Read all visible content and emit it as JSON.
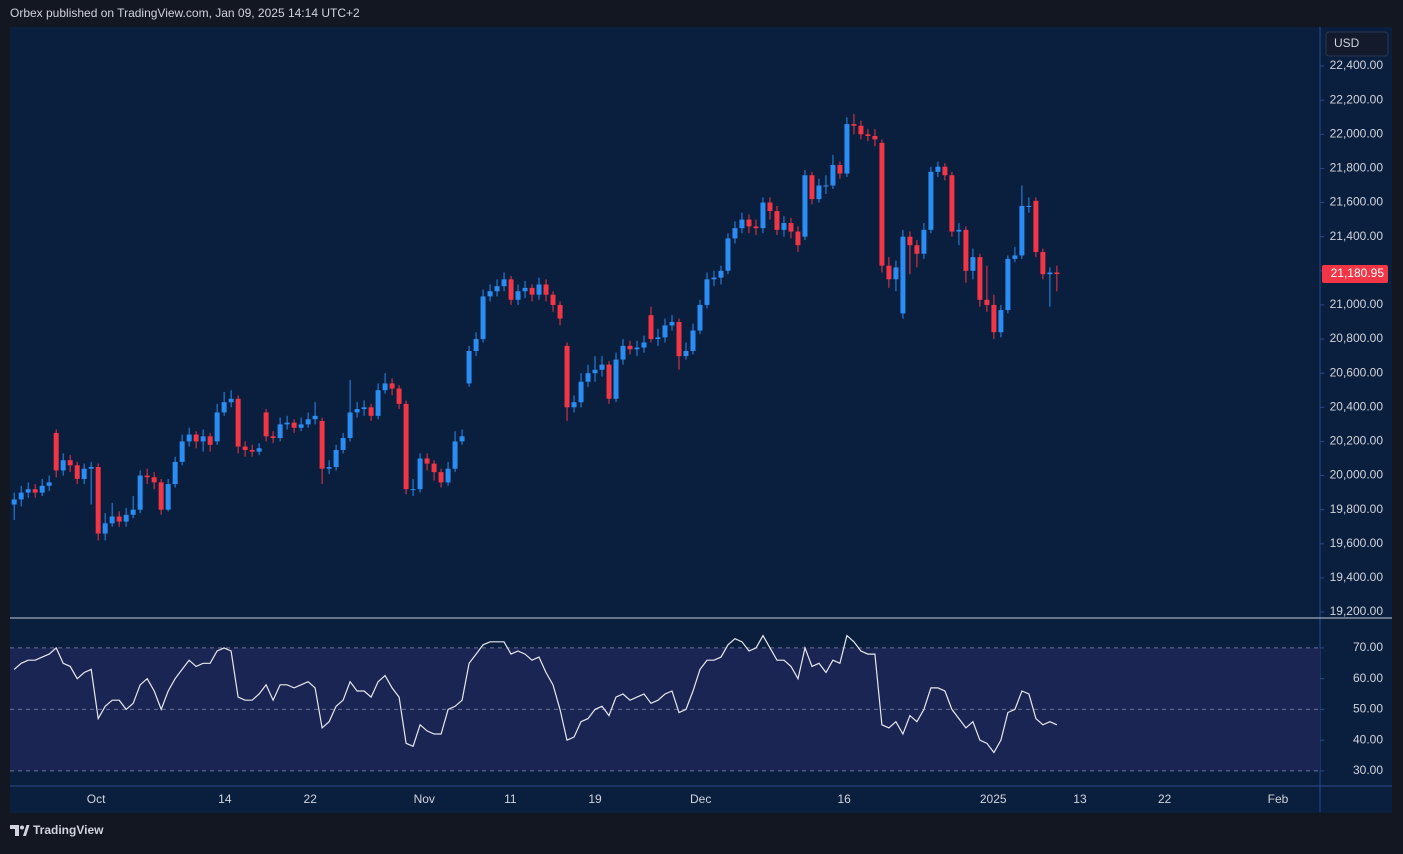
{
  "header": {
    "text": "Orbex published on TradingView.com, Jan 09, 2025 14:14 UTC+2",
    "currency": "USD"
  },
  "footer": {
    "logo_text": "TradingView"
  },
  "chart_data": [
    {
      "type": "candlestick",
      "up_color": "#2b8cf2",
      "down_color": "#f23645",
      "grid": false,
      "xlim": [
        -0.6,
        186.6
      ],
      "xticks": [
        {
          "value": 11.7,
          "label": "Oct"
        },
        {
          "value": 30.1,
          "label": "14"
        },
        {
          "value": 42.3,
          "label": "22"
        },
        {
          "value": 58.6,
          "label": "Nov"
        },
        {
          "value": 70.9,
          "label": "11"
        },
        {
          "value": 83.0,
          "label": "19"
        },
        {
          "value": 98.1,
          "label": "Dec"
        },
        {
          "value": 118.6,
          "label": "16"
        },
        {
          "value": 139.9,
          "label": "2025"
        },
        {
          "value": 152.3,
          "label": "13"
        },
        {
          "value": 164.4,
          "label": "22"
        },
        {
          "value": 180.6,
          "label": "Feb"
        }
      ],
      "ylim": [
        19171,
        22623
      ],
      "yticks": [
        {
          "value": 19200,
          "label": "19,200.00"
        },
        {
          "value": 19400,
          "label": "19,400.00"
        },
        {
          "value": 19600,
          "label": "19,600.00"
        },
        {
          "value": 19800,
          "label": "19,800.00"
        },
        {
          "value": 20000,
          "label": "20,000.00"
        },
        {
          "value": 20200,
          "label": "20,200.00"
        },
        {
          "value": 20400,
          "label": "20,400.00"
        },
        {
          "value": 20600,
          "label": "20,600.00"
        },
        {
          "value": 20800,
          "label": "20,800.00"
        },
        {
          "value": 21000,
          "label": "21,000.00"
        },
        {
          "value": 21200,
          "label": "21,200.00"
        },
        {
          "value": 21400,
          "label": "21,400.00"
        },
        {
          "value": 21600,
          "label": "21,600.00"
        },
        {
          "value": 21800,
          "label": "21,800.00"
        },
        {
          "value": 22000,
          "label": "22,000.00"
        },
        {
          "value": 22200,
          "label": "22,200.00"
        },
        {
          "value": 22400,
          "label": "22,400.00"
        }
      ],
      "last_price": {
        "value": 21180.95,
        "label": "21,180.95"
      },
      "open": [
        19830,
        19860,
        19900,
        19920,
        19900,
        19940,
        20250,
        20030,
        20090,
        20060,
        19980,
        20040,
        20050,
        19660,
        19720,
        19760,
        19730,
        19770,
        19800,
        20000,
        19990,
        19960,
        19800,
        19950,
        20080,
        20200,
        20240,
        20200,
        20230,
        20200,
        20370,
        20430,
        20450,
        20170,
        20150,
        20140,
        20370,
        20230,
        20220,
        20300,
        20310,
        20280,
        20300,
        20330,
        20320,
        20040,
        20050,
        20150,
        20220,
        20370,
        20390,
        20400,
        20350,
        20500,
        20540,
        20510,
        20420,
        19920,
        19920,
        20100,
        20070,
        20020,
        19960,
        20040,
        20200,
        20540,
        20730,
        20800,
        21050,
        21080,
        21110,
        21150,
        21030,
        21080,
        21100,
        21060,
        21120,
        21060,
        21000,
        20760,
        20400,
        20430,
        20550,
        20600,
        20620,
        20650,
        20450,
        20680,
        20760,
        20740,
        20750,
        20940,
        20800,
        20810,
        20880,
        20900,
        20700,
        20730,
        20850,
        21000,
        21150,
        21160,
        21200,
        21390,
        21450,
        21500,
        21460,
        21450,
        21600,
        21550,
        21440,
        21480,
        21430,
        21400,
        21760,
        21620,
        21700,
        21700,
        21820,
        21770,
        22060,
        22050,
        22000,
        21990,
        21950,
        21230,
        21150,
        20950,
        21400,
        21350,
        21300,
        21440,
        21780,
        21810,
        21760,
        21430,
        21440,
        21200,
        21280,
        21030,
        21000,
        20840,
        20970,
        21270,
        21290,
        21580,
        21610,
        21310,
        21180,
        21190
      ],
      "high": [
        19900,
        19940,
        19960,
        19950,
        19980,
        20000,
        20270,
        20130,
        20120,
        20080,
        20070,
        20080,
        20070,
        19780,
        19840,
        19790,
        19810,
        19880,
        20030,
        20040,
        20020,
        19980,
        19980,
        20110,
        20240,
        20280,
        20260,
        20270,
        20250,
        20420,
        20490,
        20500,
        20470,
        20200,
        20180,
        20190,
        20390,
        20260,
        20340,
        20350,
        20330,
        20340,
        20370,
        20430,
        20340,
        20090,
        20180,
        20250,
        20560,
        20430,
        20440,
        20420,
        20540,
        20600,
        20570,
        20530,
        20440,
        19980,
        20130,
        20130,
        20090,
        20040,
        20080,
        20260,
        20270,
        20760,
        20840,
        21090,
        21120,
        21150,
        21190,
        21170,
        21120,
        21140,
        21120,
        21160,
        21150,
        21080,
        21020,
        20780,
        20470,
        20600,
        20650,
        20700,
        20700,
        20670,
        20720,
        20800,
        20790,
        20790,
        20820,
        20990,
        20860,
        20920,
        20940,
        20920,
        20780,
        20890,
        21030,
        21190,
        21200,
        21230,
        21420,
        21490,
        21540,
        21530,
        21500,
        21630,
        21630,
        21580,
        21520,
        21510,
        21460,
        21790,
        21780,
        21740,
        21760,
        21880,
        21840,
        22100,
        22120,
        22080,
        22030,
        22030,
        21970,
        21280,
        21260,
        21440,
        21430,
        21380,
        21480,
        21810,
        21840,
        21830,
        21780,
        21480,
        21460,
        21330,
        21300,
        21230,
        21060,
        21000,
        21290,
        21340,
        21700,
        21630,
        21630,
        21330,
        21220,
        21230
      ],
      "low": [
        19740,
        19820,
        19870,
        19870,
        19880,
        19910,
        19990,
        20000,
        20020,
        19950,
        19950,
        19830,
        19620,
        19620,
        19700,
        19700,
        19700,
        19750,
        19780,
        19950,
        19920,
        19770,
        19790,
        19930,
        20060,
        20170,
        20160,
        20140,
        20140,
        20180,
        20350,
        20400,
        20130,
        20110,
        20110,
        20120,
        20200,
        20190,
        20200,
        20270,
        20250,
        20260,
        20280,
        20300,
        19950,
        20010,
        20030,
        20130,
        20200,
        20340,
        20350,
        20320,
        20330,
        20480,
        20470,
        20390,
        19890,
        19880,
        19900,
        20030,
        19970,
        19930,
        19940,
        20020,
        20180,
        20520,
        20700,
        20780,
        21020,
        21050,
        21080,
        21000,
        21000,
        21040,
        21020,
        21030,
        21020,
        20960,
        20880,
        20320,
        20370,
        20400,
        20520,
        20550,
        20580,
        20420,
        20430,
        20650,
        20710,
        20700,
        20720,
        20780,
        20760,
        20780,
        20850,
        20620,
        20680,
        20710,
        20830,
        20980,
        21110,
        21120,
        21180,
        21360,
        21420,
        21420,
        21410,
        21420,
        21500,
        21410,
        21400,
        21390,
        21310,
        21380,
        21590,
        21600,
        21650,
        21680,
        21740,
        21750,
        22000,
        21970,
        21960,
        21930,
        21190,
        21100,
        21080,
        20920,
        21180,
        21220,
        21270,
        21420,
        21750,
        21730,
        21400,
        21350,
        21130,
        21150,
        20990,
        20960,
        20800,
        20810,
        20950,
        21250,
        21270,
        21540,
        21280,
        21150,
        20990,
        21080
      ],
      "close": [
        19860,
        19900,
        19920,
        19900,
        19940,
        19960,
        20030,
        20090,
        20060,
        19980,
        20040,
        20050,
        19660,
        19720,
        19760,
        19730,
        19770,
        19800,
        20000,
        19990,
        19960,
        19800,
        19950,
        20080,
        20200,
        20240,
        20200,
        20230,
        20180,
        20370,
        20430,
        20450,
        20170,
        20150,
        20140,
        20160,
        20230,
        20220,
        20300,
        20310,
        20280,
        20300,
        20330,
        20350,
        20040,
        20050,
        20150,
        20220,
        20370,
        20390,
        20400,
        20350,
        20500,
        20540,
        20510,
        20420,
        19920,
        19920,
        20100,
        20070,
        20020,
        19960,
        20040,
        20200,
        20230,
        20730,
        20800,
        21050,
        21080,
        21110,
        21150,
        21030,
        21080,
        21100,
        21060,
        21120,
        21060,
        21000,
        20920,
        20400,
        20430,
        20550,
        20600,
        20620,
        20650,
        20450,
        20680,
        20760,
        20740,
        20750,
        20780,
        20800,
        20810,
        20880,
        20900,
        20700,
        20730,
        20850,
        21000,
        21150,
        21160,
        21200,
        21390,
        21450,
        21500,
        21460,
        21450,
        21600,
        21550,
        21440,
        21480,
        21430,
        21350,
        21760,
        21620,
        21700,
        21700,
        21820,
        21770,
        22060,
        22050,
        22000,
        21990,
        21970,
        21230,
        21150,
        21220,
        21400,
        21350,
        21300,
        21440,
        21780,
        21810,
        21760,
        21430,
        21440,
        21200,
        21280,
        21030,
        21000,
        20840,
        20970,
        21270,
        21290,
        21580,
        21580,
        21310,
        21180,
        21190,
        21180.95
      ]
    },
    {
      "type": "line",
      "color": "#e6e8ee",
      "band_color": "#1b2553",
      "ylim": [
        25.1,
        79.4
      ],
      "yticks": [
        {
          "value": 30,
          "label": "30.00"
        },
        {
          "value": 40,
          "label": "40.00"
        },
        {
          "value": 50,
          "label": "50.00"
        },
        {
          "value": 60,
          "label": "60.00"
        },
        {
          "value": 70,
          "label": "70.00"
        }
      ],
      "levels": [
        30,
        50,
        70
      ],
      "values": [
        63,
        65,
        66,
        66,
        67,
        68,
        70,
        65,
        64,
        60,
        62,
        63,
        47,
        51,
        53,
        53,
        50,
        52,
        58,
        60,
        56,
        50,
        56,
        60,
        63,
        66,
        64,
        65,
        65,
        69,
        70,
        69,
        54,
        53,
        53,
        55,
        58,
        53,
        58,
        58,
        57,
        58,
        59,
        57,
        44,
        46,
        51,
        53,
        59,
        56,
        56,
        54,
        59,
        61,
        57,
        54,
        39,
        38,
        45,
        43,
        42,
        42,
        50,
        51,
        53,
        65,
        68,
        71,
        72,
        72,
        72,
        68,
        69,
        68,
        66,
        67,
        62,
        58,
        50,
        40,
        41,
        46,
        47,
        50,
        51,
        48,
        54,
        55,
        53,
        54,
        55,
        52,
        53,
        55,
        56,
        49,
        50,
        56,
        63,
        66,
        66,
        67,
        71,
        73,
        72,
        69,
        70,
        74,
        70,
        66,
        66,
        64,
        60,
        70,
        64,
        65,
        62,
        66,
        65,
        74,
        72,
        69,
        68,
        68,
        45,
        44,
        46,
        42,
        48,
        46,
        50,
        57,
        57,
        56,
        50,
        47,
        44,
        46,
        40,
        39,
        36,
        40,
        49,
        50,
        56,
        55,
        47,
        45,
        46,
        45
      ]
    }
  ]
}
